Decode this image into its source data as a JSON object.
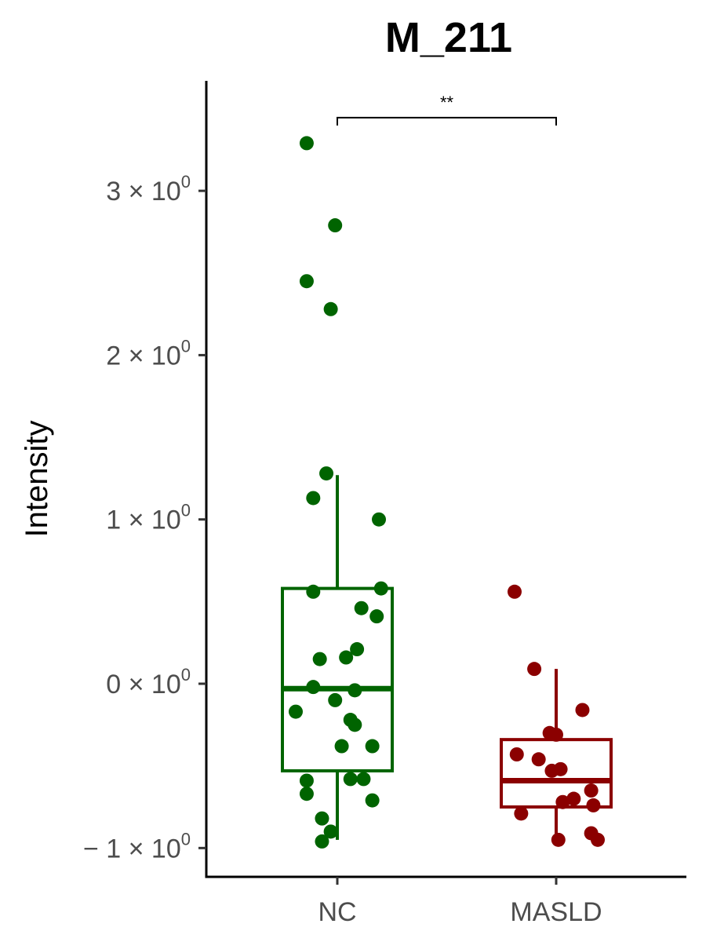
{
  "chart_data": {
    "type": "box",
    "title": "M_211",
    "xlabel": "",
    "ylabel": "Intensity",
    "categories": [
      "NC",
      "MASLD"
    ],
    "ylim": [
      -1.15,
      3.7
    ],
    "yticks": [
      {
        "value": -1,
        "mantissa": "− 1",
        "exponent": "0"
      },
      {
        "value": 0,
        "mantissa": "0",
        "exponent": "0"
      },
      {
        "value": 1,
        "mantissa": "1",
        "exponent": "0"
      },
      {
        "value": 2,
        "mantissa": "2",
        "exponent": "0"
      },
      {
        "value": 3,
        "mantissa": "3",
        "exponent": "0"
      }
    ],
    "tick_times": "×",
    "tick_base": "10",
    "series": [
      {
        "color": "#006400",
        "box": {
          "q1": -0.53,
          "median": -0.03,
          "q3": 0.58,
          "whisker_low": -0.95,
          "whisker_high": 1.27
        },
        "points": [
          {
            "x": -0.14,
            "y": 3.29
          },
          {
            "x": -0.01,
            "y": 2.79
          },
          {
            "x": -0.14,
            "y": 2.45
          },
          {
            "x": -0.03,
            "y": 2.28
          },
          {
            "x": -0.05,
            "y": 1.28
          },
          {
            "x": -0.11,
            "y": 1.13
          },
          {
            "x": 0.19,
            "y": 1.0
          },
          {
            "x": 0.2,
            "y": 0.58
          },
          {
            "x": -0.11,
            "y": 0.56
          },
          {
            "x": 0.11,
            "y": 0.46
          },
          {
            "x": 0.18,
            "y": 0.41
          },
          {
            "x": 0.09,
            "y": 0.21
          },
          {
            "x": 0.04,
            "y": 0.16
          },
          {
            "x": -0.08,
            "y": 0.15
          },
          {
            "x": -0.11,
            "y": -0.02
          },
          {
            "x": 0.08,
            "y": -0.04
          },
          {
            "x": -0.01,
            "y": -0.1
          },
          {
            "x": -0.19,
            "y": -0.17
          },
          {
            "x": 0.06,
            "y": -0.22
          },
          {
            "x": 0.08,
            "y": -0.25
          },
          {
            "x": 0.02,
            "y": -0.38
          },
          {
            "x": 0.16,
            "y": -0.38
          },
          {
            "x": -0.14,
            "y": -0.59
          },
          {
            "x": 0.06,
            "y": -0.58
          },
          {
            "x": 0.12,
            "y": -0.58
          },
          {
            "x": -0.14,
            "y": -0.67
          },
          {
            "x": 0.16,
            "y": -0.71
          },
          {
            "x": -0.07,
            "y": -0.82
          },
          {
            "x": -0.03,
            "y": -0.9
          },
          {
            "x": -0.07,
            "y": -0.96
          }
        ]
      },
      {
        "color": "#8b0000",
        "box": {
          "q1": -0.75,
          "median": -0.59,
          "q3": -0.34,
          "whisker_low": -0.95,
          "whisker_high": 0.09
        },
        "points": [
          {
            "x": -0.19,
            "y": 0.56
          },
          {
            "x": -0.1,
            "y": 0.09
          },
          {
            "x": 0.12,
            "y": -0.16
          },
          {
            "x": -0.03,
            "y": -0.3
          },
          {
            "x": -0.0,
            "y": -0.31
          },
          {
            "x": -0.18,
            "y": -0.43
          },
          {
            "x": -0.08,
            "y": -0.46
          },
          {
            "x": -0.02,
            "y": -0.53
          },
          {
            "x": 0.02,
            "y": -0.52
          },
          {
            "x": 0.16,
            "y": -0.65
          },
          {
            "x": 0.08,
            "y": -0.7
          },
          {
            "x": 0.03,
            "y": -0.72
          },
          {
            "x": 0.17,
            "y": -0.74
          },
          {
            "x": -0.16,
            "y": -0.79
          },
          {
            "x": 0.16,
            "y": -0.91
          },
          {
            "x": 0.01,
            "y": -0.95
          },
          {
            "x": 0.19,
            "y": -0.95
          }
        ]
      }
    ],
    "significance": {
      "label": "**",
      "from": 0,
      "to": 1,
      "y": 3.45
    }
  }
}
